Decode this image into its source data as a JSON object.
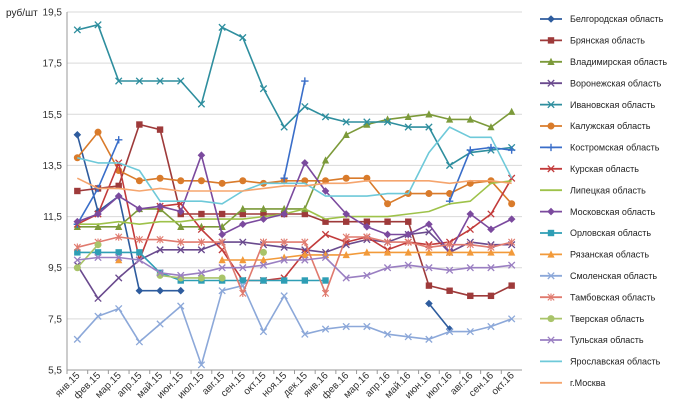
{
  "chart_data": {
    "type": "line",
    "ylabel": "руб/шт",
    "ylim": [
      5.5,
      19.5
    ],
    "yticks": [
      "5,5",
      "7,5",
      "9,5",
      "11,5",
      "13,5",
      "15,5",
      "17,5",
      "19,5"
    ],
    "ytick_values": [
      5.5,
      7.5,
      9.5,
      11.5,
      13.5,
      15.5,
      17.5,
      19.5
    ],
    "grid": true,
    "legend_position": "right",
    "categories": [
      "янв.15",
      "фев.15",
      "мар.15",
      "апр.15",
      "май.15",
      "июн.15",
      "июл.15",
      "авг.15",
      "сен.15",
      "окт.15",
      "ноя.15",
      "дек.15",
      "янв.16",
      "фев.16",
      "мар.16",
      "апр.16",
      "май.16",
      "июн.16",
      "июл.16",
      "авг.16",
      "сен.16",
      "окт.16"
    ],
    "tick_labels": [
      "янв.15",
      "фев.15",
      "мар.15",
      "апр.15",
      "май.15",
      "июн.15",
      "июл.15",
      "авг.15",
      "сен.15",
      "окт.15",
      "ноя.15",
      "дек.15",
      "янв.16",
      "фев.16",
      "мар.16",
      "апр.16",
      "май.16",
      "июн.16",
      "июл.16",
      "авг.16",
      "сен.16",
      "окт.16"
    ],
    "series": [
      {
        "name": "Белгородская область",
        "color": "#2E5C9E",
        "marker": "diamond",
        "values": [
          14.7,
          11.7,
          12.3,
          8.6,
          8.6,
          8.6,
          null,
          null,
          null,
          null,
          null,
          null,
          null,
          null,
          null,
          null,
          null,
          8.1,
          7.1,
          null,
          null,
          null
        ]
      },
      {
        "name": "Брянская область",
        "color": "#9E3A3A",
        "marker": "square",
        "values": [
          12.5,
          12.6,
          12.7,
          15.1,
          14.9,
          11.6,
          11.6,
          11.6,
          11.6,
          11.6,
          11.6,
          11.6,
          11.3,
          11.3,
          11.3,
          11.3,
          11.3,
          8.8,
          8.6,
          8.4,
          8.4,
          8.8
        ]
      },
      {
        "name": "Владимирская область",
        "color": "#7C9A3A",
        "marker": "triangle",
        "values": [
          11.1,
          11.1,
          11.1,
          11.8,
          11.8,
          11.1,
          11.1,
          11.1,
          11.8,
          11.8,
          11.8,
          11.8,
          13.7,
          14.7,
          15.1,
          15.3,
          15.4,
          15.5,
          15.3,
          15.3,
          15.0,
          15.6
        ]
      },
      {
        "name": "Воронежская область",
        "color": "#6A4A8E",
        "marker": "x",
        "values": [
          9.6,
          8.3,
          9.1,
          9.8,
          10.2,
          10.2,
          10.2,
          10.5,
          10.5,
          10.4,
          10.3,
          10.2,
          10.1,
          10.4,
          10.6,
          10.5,
          10.8,
          10.9,
          10.1,
          10.5,
          10.4,
          10.4
        ]
      },
      {
        "name": "Ивановская область",
        "color": "#2E8E9E",
        "marker": "x",
        "values": [
          18.8,
          19.0,
          16.8,
          16.8,
          16.8,
          16.8,
          15.9,
          18.9,
          18.5,
          16.5,
          15.0,
          15.8,
          15.4,
          15.2,
          15.2,
          15.2,
          15.0,
          15.0,
          13.5,
          14.0,
          14.1,
          14.2
        ]
      },
      {
        "name": "Калужская область",
        "color": "#D97B2B",
        "marker": "circle",
        "values": [
          13.8,
          14.8,
          13.3,
          12.9,
          13.0,
          12.9,
          12.9,
          12.8,
          12.9,
          12.8,
          12.9,
          12.9,
          12.9,
          13.0,
          13.0,
          12.0,
          12.4,
          12.4,
          12.4,
          12.8,
          12.9,
          12.0
        ]
      },
      {
        "name": "Костромская область",
        "color": "#3A6EC9",
        "marker": "plus",
        "values": [
          11.2,
          12.6,
          14.5,
          null,
          null,
          null,
          null,
          null,
          null,
          null,
          13.0,
          16.8,
          null,
          null,
          null,
          null,
          null,
          null,
          12.1,
          14.1,
          14.2,
          14.1
        ]
      },
      {
        "name": "Курская область",
        "color": "#C23B3B",
        "marker": "x",
        "values": [
          11.2,
          11.6,
          13.6,
          9.8,
          11.9,
          12.0,
          11.0,
          10.2,
          9.0,
          9.0,
          9.1,
          10.1,
          10.8,
          10.5,
          10.7,
          10.2,
          10.5,
          10.4,
          10.5,
          11.0,
          11.6,
          13.0
        ]
      },
      {
        "name": "Липецкая область",
        "color": "#9EC24A",
        "marker": "none",
        "values": [
          11.2,
          11.2,
          11.3,
          11.2,
          11.3,
          11.3,
          11.4,
          11.4,
          11.4,
          11.5,
          11.6,
          11.8,
          11.4,
          11.5,
          11.5,
          11.5,
          11.6,
          11.7,
          12.0,
          12.1,
          12.8,
          12.9
        ]
      },
      {
        "name": "Московская область",
        "color": "#7B4A9E",
        "marker": "diamond",
        "values": [
          11.3,
          11.6,
          12.3,
          11.8,
          11.9,
          11.7,
          13.9,
          10.8,
          11.2,
          11.4,
          11.6,
          13.6,
          12.5,
          11.6,
          11.1,
          10.8,
          10.8,
          11.2,
          10.1,
          11.6,
          11.0,
          11.4
        ]
      },
      {
        "name": "Орловская область",
        "color": "#2E9EB5",
        "marker": "square",
        "values": [
          10.1,
          10.1,
          10.1,
          10.1,
          9.3,
          9.0,
          9.0,
          9.0,
          9.0,
          9.0,
          9.0,
          9.0,
          9.0,
          null,
          null,
          null,
          null,
          null,
          null,
          null,
          null,
          null
        ]
      },
      {
        "name": "Рязанская область",
        "color": "#F29A3A",
        "marker": "triangle",
        "values": [
          null,
          null,
          9.8,
          null,
          null,
          null,
          null,
          9.8,
          9.8,
          9.8,
          9.9,
          10.0,
          10.0,
          10.0,
          10.1,
          10.1,
          10.1,
          10.1,
          10.1,
          10.1,
          10.1,
          10.1
        ]
      },
      {
        "name": "Смоленская область",
        "color": "#8CA8D9",
        "marker": "x",
        "values": [
          6.7,
          7.6,
          7.9,
          6.6,
          7.3,
          8.0,
          5.7,
          8.6,
          8.8,
          7.0,
          8.4,
          6.9,
          7.1,
          7.2,
          7.2,
          6.9,
          6.8,
          6.7,
          7.0,
          7.0,
          7.2,
          7.5
        ]
      },
      {
        "name": "Тамбовская область",
        "color": "#E07A6E",
        "marker": "star",
        "values": [
          10.3,
          10.5,
          10.7,
          10.6,
          10.6,
          10.5,
          10.5,
          10.5,
          8.5,
          10.5,
          10.5,
          10.5,
          8.5,
          10.7,
          10.7,
          10.5,
          10.5,
          10.3,
          10.4,
          10.4,
          10.3,
          10.5
        ]
      },
      {
        "name": "Тверская область",
        "color": "#A9C46A",
        "marker": "circle",
        "values": [
          9.5,
          10.4,
          null,
          null,
          9.2,
          9.1,
          9.1,
          9.1,
          null,
          10.1,
          null,
          null,
          null,
          null,
          null,
          null,
          null,
          null,
          null,
          null,
          null,
          null
        ]
      },
      {
        "name": "Тульская область",
        "color": "#9A7FC2",
        "marker": "x",
        "values": [
          9.8,
          9.9,
          9.9,
          9.8,
          9.3,
          9.2,
          9.3,
          9.5,
          9.5,
          9.6,
          9.8,
          9.8,
          9.9,
          9.1,
          9.2,
          9.5,
          9.6,
          9.5,
          9.4,
          9.5,
          9.5,
          9.6
        ]
      },
      {
        "name": "Ярославская область",
        "color": "#6EC9D9",
        "marker": "none",
        "values": [
          13.8,
          13.6,
          13.6,
          13.3,
          12.1,
          12.1,
          12.1,
          12.0,
          12.5,
          12.8,
          12.8,
          12.8,
          12.3,
          12.3,
          12.3,
          12.4,
          12.4,
          14.0,
          15.0,
          14.6,
          14.6,
          13.0
        ]
      },
      {
        "name": "г.Москва",
        "color": "#F5A56E",
        "marker": "none",
        "values": [
          13.0,
          12.6,
          12.6,
          12.5,
          12.6,
          12.5,
          12.5,
          12.5,
          12.5,
          12.6,
          12.7,
          12.7,
          12.8,
          12.8,
          12.9,
          12.9,
          12.9,
          12.9,
          12.8,
          12.9,
          12.9,
          12.8
        ]
      }
    ]
  }
}
